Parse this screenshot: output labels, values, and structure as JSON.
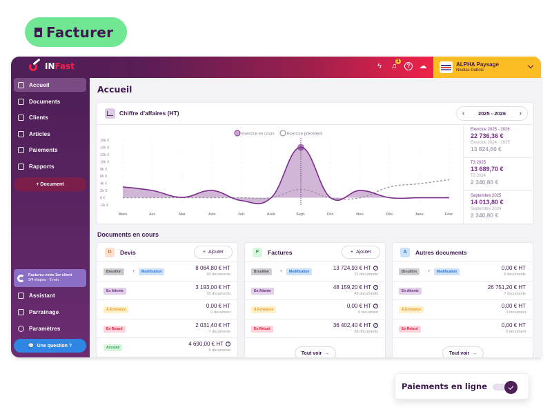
{
  "hero": {
    "label": "Facturer",
    "icon": "document-icon"
  },
  "app": {
    "logo": {
      "part1": "IN",
      "part2": "Fast"
    },
    "topbar": {
      "icons": [
        "flash-icon",
        "bell-icon",
        "help-icon",
        "cloud-icon"
      ],
      "notification_count": "1"
    },
    "account": {
      "company": "ALPHA Paysage",
      "user": "Nicolas Dubois"
    }
  },
  "sidebar": {
    "items": [
      {
        "label": "Accueil",
        "icon": "home-icon",
        "active": true
      },
      {
        "label": "Documents",
        "icon": "documents-icon"
      },
      {
        "label": "Clients",
        "icon": "clients-icon"
      },
      {
        "label": "Articles",
        "icon": "cart-icon"
      },
      {
        "label": "Paiements",
        "icon": "piggy-bank-icon"
      },
      {
        "label": "Rapports",
        "icon": "pie-chart-icon"
      }
    ],
    "new_document": "+ Document",
    "onboarding": {
      "title": "Facturez votre 1er client",
      "subtitle": "3/4 étapes · 2 min"
    },
    "bottom_items": [
      {
        "label": "Assistant",
        "icon": "sparkles-icon"
      },
      {
        "label": "Parrainage",
        "icon": "gift-icon"
      },
      {
        "label": "Paramètres",
        "icon": "gear-icon"
      }
    ],
    "question_button": "Une question ?"
  },
  "main": {
    "title": "Accueil",
    "chart_card": {
      "title": "Chiffre d'affaires (HT)",
      "year_selector": "2025 - 2026",
      "prev_arrow": "‹",
      "next_arrow": "›",
      "stats": [
        {
          "label": "Exercice 2025 - 2026",
          "value": "22 736,36 €",
          "compare_label": "Exercice 2024 - 2025",
          "compare_value": "13 824,60 €"
        },
        {
          "label": "T3 2025",
          "value": "13 689,70 €",
          "compare_label": "T3 2024",
          "compare_value": "2 340,80 €"
        },
        {
          "label": "Septembre 2025",
          "value": "14 013,80 €",
          "compare_label": "Septembre 2024",
          "compare_value": "2 340,80 €"
        }
      ]
    },
    "documents_section": {
      "title": "Documents en cours",
      "add_label": "Ajouter",
      "see_all_label": "Tout voir",
      "cards": [
        {
          "letter": "D",
          "name": "Devis",
          "letter_bg": "#fde0cf",
          "letter_color": "#e8742e",
          "has_add": true,
          "has_see_all": false,
          "rows": [
            {
              "tags": [
                "Brouillon",
                "Modification"
              ],
              "amount": "8 064,80 € HT",
              "count": "50 documents",
              "info": false
            },
            {
              "tags": [
                "En Attente"
              ],
              "amount": "3 193,00 € HT",
              "count": "10 documents",
              "info": false
            },
            {
              "tags": [
                "À Échéance"
              ],
              "amount": "0,00 € HT",
              "count": "0 document",
              "info": false
            },
            {
              "tags": [
                "En Retard"
              ],
              "amount": "2 031,40 € HT",
              "count": "7 documents",
              "info": false
            },
            {
              "tags": [
                "Accepté"
              ],
              "amount": "4 690,00 € HT",
              "count": "5 documents",
              "info": true
            }
          ]
        },
        {
          "letter": "F",
          "name": "Factures",
          "letter_bg": "#d8f6de",
          "letter_color": "#2aa14f",
          "has_add": true,
          "has_see_all": true,
          "rows": [
            {
              "tags": [
                "Brouillon",
                "Modification"
              ],
              "amount": "13 724,93 € HT",
              "count": "21 documents",
              "info": true
            },
            {
              "tags": [
                "En Attente"
              ],
              "amount": "48 159,20 € HT",
              "count": "43 documents",
              "info": true
            },
            {
              "tags": [
                "À Échéance"
              ],
              "amount": "0,00 € HT",
              "count": "0 document",
              "info": true
            },
            {
              "tags": [
                "En Retard"
              ],
              "amount": "36 402,40 € HT",
              "count": "38 documents",
              "info": true
            }
          ]
        },
        {
          "letter": "A",
          "name": "Autres documents",
          "letter_bg": "#cce2fb",
          "letter_color": "#2a6fd1",
          "has_add": false,
          "has_see_all": true,
          "rows": [
            {
              "tags": [
                "Brouillon",
                "Modification"
              ],
              "amount": "0,00 € HT",
              "count": "6 documents",
              "info": false
            },
            {
              "tags": [
                "En Attente"
              ],
              "amount": "26 751,20 € HT",
              "count": "7 documents",
              "info": false
            },
            {
              "tags": [
                "À Échéance"
              ],
              "amount": "0,00 € HT",
              "count": "0 document",
              "info": false
            },
            {
              "tags": [
                "En Retard"
              ],
              "amount": "0,00 € HT",
              "count": "0 document",
              "info": false
            }
          ]
        }
      ]
    }
  },
  "online_payments": {
    "label": "Paiements en ligne",
    "enabled": true
  },
  "colors": {
    "brand_dark": "#3d1a4f",
    "accent_green": "#71e693",
    "accent_red": "#f0224a",
    "accent_yellow": "#fbbd23",
    "series_current": "#7a2e8a",
    "series_previous": "#9a95a0"
  },
  "chart_data": {
    "type": "area",
    "title": "Chiffre d'affaires (HT)",
    "xlabel": "",
    "ylabel": "",
    "categories": [
      "Mars",
      "Avr.",
      "Mai",
      "Juin",
      "Juil.",
      "Août",
      "Sept.",
      "Oct.",
      "Nov.",
      "Déc.",
      "Janv.",
      "Févr."
    ],
    "yticks": [
      "16k €",
      "14k €",
      "12k €",
      "10k €",
      "8k €",
      "6k €",
      "4k €",
      "2k €",
      "0 €",
      "-2k €"
    ],
    "ylim": [
      -2000,
      16000
    ],
    "series": [
      {
        "name": "Exercice en cours",
        "style": "solid-area",
        "values": [
          3000,
          2000,
          100,
          2000,
          -800,
          0,
          14000,
          0,
          2000,
          0,
          0,
          0
        ]
      },
      {
        "name": "Exercice précédent",
        "style": "dashed",
        "values": [
          0,
          0,
          0,
          0,
          0,
          0,
          2300,
          0,
          0,
          3000,
          3900,
          5000
        ]
      }
    ],
    "highlight": {
      "category": "Sept.",
      "series": "Exercice en cours",
      "value": 14000
    },
    "legend_position": "top",
    "grid": "vertical-dashed"
  }
}
